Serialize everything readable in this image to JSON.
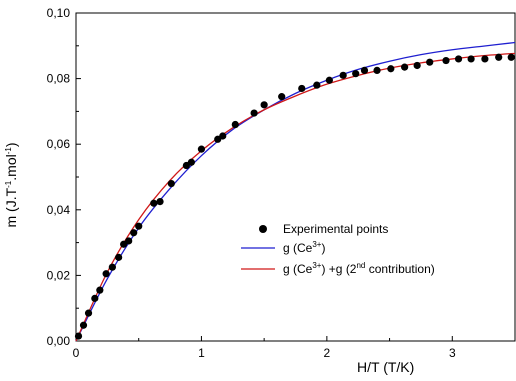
{
  "chart_data": {
    "type": "scatter",
    "xlabel": "H/T (T/K)",
    "ylabel": "m (J.T-1.mol-1)",
    "xlim": [
      0,
      3.5
    ],
    "ylim": [
      0,
      0.1
    ],
    "x_ticks": [
      {
        "value": 0,
        "label": "0"
      },
      {
        "value": 1,
        "label": "1"
      },
      {
        "value": 2,
        "label": "2"
      },
      {
        "value": 3,
        "label": "3"
      }
    ],
    "y_ticks": [
      {
        "value": 0,
        "label": "0,00"
      },
      {
        "value": 0.02,
        "label": "0,02"
      },
      {
        "value": 0.04,
        "label": "0,04"
      },
      {
        "value": 0.06,
        "label": "0,06"
      },
      {
        "value": 0.08,
        "label": "0,08"
      },
      {
        "value": 0.1,
        "label": "0,10"
      }
    ],
    "grid": false,
    "legend_position": "center-right",
    "legend": [
      {
        "label": "Experimental points",
        "marker": "dot",
        "color": "#000000"
      },
      {
        "label": "g (Ce3+)",
        "marker": "line",
        "color": "#1f1fd0"
      },
      {
        "label": "g (Ce3+) +g (2nd contribution)",
        "marker": "line",
        "color": "#d01818"
      }
    ],
    "series": [
      {
        "name": "Experimental points",
        "kind": "scatter",
        "color": "#000000",
        "points": [
          [
            0.02,
            0.0015
          ],
          [
            0.06,
            0.0048
          ],
          [
            0.1,
            0.0085
          ],
          [
            0.15,
            0.013
          ],
          [
            0.19,
            0.0155
          ],
          [
            0.24,
            0.0205
          ],
          [
            0.29,
            0.0225
          ],
          [
            0.34,
            0.0255
          ],
          [
            0.38,
            0.0295
          ],
          [
            0.42,
            0.0305
          ],
          [
            0.46,
            0.033
          ],
          [
            0.5,
            0.035
          ],
          [
            0.62,
            0.042
          ],
          [
            0.67,
            0.0425
          ],
          [
            0.76,
            0.048
          ],
          [
            0.88,
            0.0535
          ],
          [
            0.92,
            0.0545
          ],
          [
            1.0,
            0.0585
          ],
          [
            1.13,
            0.0615
          ],
          [
            1.17,
            0.0625
          ],
          [
            1.27,
            0.066
          ],
          [
            1.42,
            0.0695
          ],
          [
            1.5,
            0.072
          ],
          [
            1.64,
            0.0745
          ],
          [
            1.8,
            0.077
          ],
          [
            1.92,
            0.078
          ],
          [
            2.02,
            0.0795
          ],
          [
            2.13,
            0.081
          ],
          [
            2.23,
            0.0815
          ],
          [
            2.3,
            0.0825
          ],
          [
            2.4,
            0.0825
          ],
          [
            2.51,
            0.083
          ],
          [
            2.62,
            0.0835
          ],
          [
            2.72,
            0.084
          ],
          [
            2.82,
            0.085
          ],
          [
            2.95,
            0.0855
          ],
          [
            3.05,
            0.086
          ],
          [
            3.15,
            0.086
          ],
          [
            3.26,
            0.086
          ],
          [
            3.37,
            0.0865
          ],
          [
            3.47,
            0.0865
          ]
        ]
      },
      {
        "name": "g (Ce3+)",
        "kind": "line",
        "color": "#1f1fd0",
        "points": [
          [
            0,
            0
          ],
          [
            0.25,
            0.019
          ],
          [
            0.5,
            0.0345
          ],
          [
            0.75,
            0.0465
          ],
          [
            1.0,
            0.0565
          ],
          [
            1.25,
            0.0645
          ],
          [
            1.5,
            0.0705
          ],
          [
            1.75,
            0.0755
          ],
          [
            2.0,
            0.0795
          ],
          [
            2.25,
            0.0828
          ],
          [
            2.5,
            0.0853
          ],
          [
            2.75,
            0.0873
          ],
          [
            3.0,
            0.0888
          ],
          [
            3.25,
            0.0899
          ],
          [
            3.5,
            0.091
          ]
        ]
      },
      {
        "name": "g (Ce3+) +g (2nd contribution)",
        "kind": "line",
        "color": "#d01818",
        "points": [
          [
            0,
            0
          ],
          [
            0.25,
            0.021
          ],
          [
            0.5,
            0.037
          ],
          [
            0.75,
            0.049
          ],
          [
            1.0,
            0.058
          ],
          [
            1.25,
            0.065
          ],
          [
            1.5,
            0.0705
          ],
          [
            1.75,
            0.0747
          ],
          [
            2.0,
            0.0783
          ],
          [
            2.25,
            0.081
          ],
          [
            2.5,
            0.0832
          ],
          [
            2.75,
            0.0848
          ],
          [
            3.0,
            0.086
          ],
          [
            3.25,
            0.087
          ],
          [
            3.5,
            0.0877
          ]
        ]
      }
    ]
  }
}
